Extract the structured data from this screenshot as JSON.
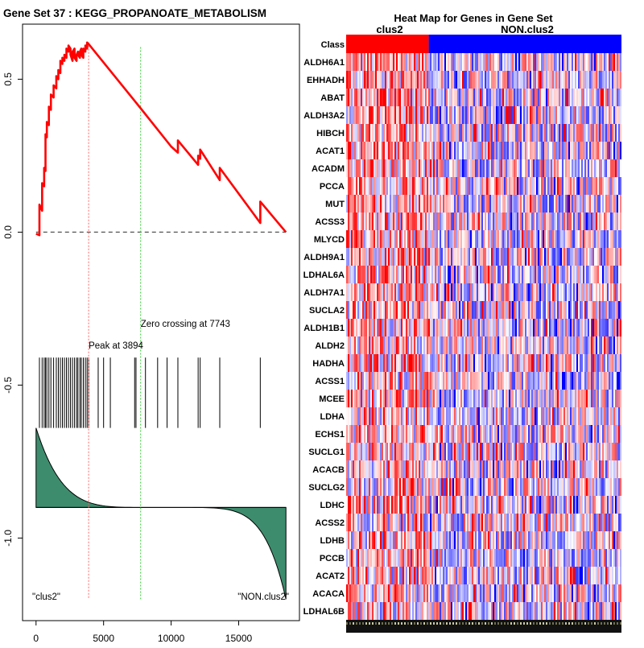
{
  "chart_data": [
    {
      "type": "line",
      "title": "Gene Set  37 : KEGG_PROPANOATE_METABOLISM",
      "xlim": [
        -1000,
        19500
      ],
      "ylim": [
        -1.27,
        0.68
      ],
      "x_ticks": [
        0,
        5000,
        10000,
        15000
      ],
      "x_tick_labels": [
        "0",
        "5000",
        "10000",
        "15000"
      ],
      "y_ticks": [
        0.5,
        0.0,
        -0.5,
        -1.0
      ],
      "y_tick_labels": [
        "0.5",
        "0.0",
        "-0.5",
        "-1.0"
      ],
      "es_curve": {
        "name": "Running enrichment score",
        "color": "#ff0000",
        "x": [
          0,
          250,
          250,
          450,
          450,
          600,
          600,
          700,
          700,
          800,
          800,
          950,
          950,
          1100,
          1100,
          1300,
          1300,
          1500,
          1500,
          1650,
          1650,
          1800,
          1800,
          1950,
          1950,
          2100,
          2100,
          2250,
          2250,
          2400,
          2400,
          2550,
          2550,
          2700,
          2700,
          2850,
          2850,
          3000,
          3000,
          3100,
          3100,
          3250,
          3250,
          3350,
          3350,
          3500,
          3500,
          3650,
          3650,
          3780,
          3780,
          3894,
          3894,
          7743,
          10000,
          10500,
          10500,
          12000,
          12000,
          12150,
          12150,
          13600,
          13600,
          16600,
          16600,
          18500
        ],
        "y": [
          -0.005,
          -0.01,
          0.09,
          0.07,
          0.16,
          0.15,
          0.21,
          0.2,
          0.32,
          0.31,
          0.36,
          0.35,
          0.41,
          0.4,
          0.45,
          0.44,
          0.48,
          0.47,
          0.51,
          0.5,
          0.53,
          0.52,
          0.56,
          0.55,
          0.57,
          0.56,
          0.58,
          0.57,
          0.6,
          0.59,
          0.61,
          0.6,
          0.58,
          0.56,
          0.59,
          0.6,
          0.57,
          0.56,
          0.58,
          0.59,
          0.58,
          0.57,
          0.59,
          0.6,
          0.58,
          0.57,
          0.6,
          0.59,
          0.61,
          0.6,
          0.62,
          0.615,
          0.615,
          0.405,
          0.28,
          0.26,
          0.3,
          0.22,
          0.25,
          0.24,
          0.27,
          0.17,
          0.21,
          0.03,
          0.1,
          0.0
        ]
      },
      "baseline_y": 0.0,
      "peak": {
        "x": 3894,
        "label": "Peak at 3894"
      },
      "zero_crossing": {
        "x": 7743,
        "label": "Zero crossing at 7743"
      },
      "hit_positions": [
        250,
        450,
        600,
        700,
        800,
        950,
        1100,
        1300,
        1500,
        1650,
        1800,
        1950,
        2100,
        2250,
        2400,
        2550,
        2700,
        2850,
        3000,
        3100,
        3250,
        3350,
        3500,
        3650,
        3780,
        3894,
        4600,
        5000,
        5500,
        7300,
        7400,
        8100,
        9000,
        9700,
        10500,
        12000,
        12150,
        13600,
        16600
      ],
      "hits_y_range": [
        -0.64,
        -0.41
      ],
      "ranked_metric": {
        "baseline_y": -0.9,
        "fill_color": "#3d8c6e",
        "start_y": -0.64,
        "end_y": -1.2,
        "max_x": 18500
      },
      "left_label": "\"clus2\"",
      "right_label": "\"NON.clus2\""
    },
    {
      "type": "heatmap",
      "title": "Heat Map for Genes in Gene Set",
      "classes": [
        {
          "name": "clus2",
          "color": "#ff0000",
          "fraction": 0.3
        },
        {
          "name": "NON.clus2",
          "color": "#0000ff",
          "fraction": 0.7
        }
      ],
      "class_row_label": "Class",
      "genes": [
        "ALDH6A1",
        "EHHADH",
        "ABAT",
        "ALDH3A2",
        "HIBCH",
        "ACAT1",
        "ACADM",
        "PCCA",
        "MUT",
        "ACSS3",
        "MLYCD",
        "ALDH9A1",
        "LDHAL6A",
        "ALDH7A1",
        "SUCLA2",
        "ALDH1B1",
        "ALDH2",
        "HADHA",
        "ACSS1",
        "MCEE",
        "LDHA",
        "ECHS1",
        "SUCLG1",
        "ACACB",
        "SUCLG2",
        "LDHC",
        "ACSS2",
        "LDHB",
        "PCCB",
        "ACAT2",
        "ACACA",
        "LDHAL6B"
      ],
      "color_scale": [
        "#0000ff",
        "#ffffff",
        "#ff0000"
      ]
    }
  ]
}
